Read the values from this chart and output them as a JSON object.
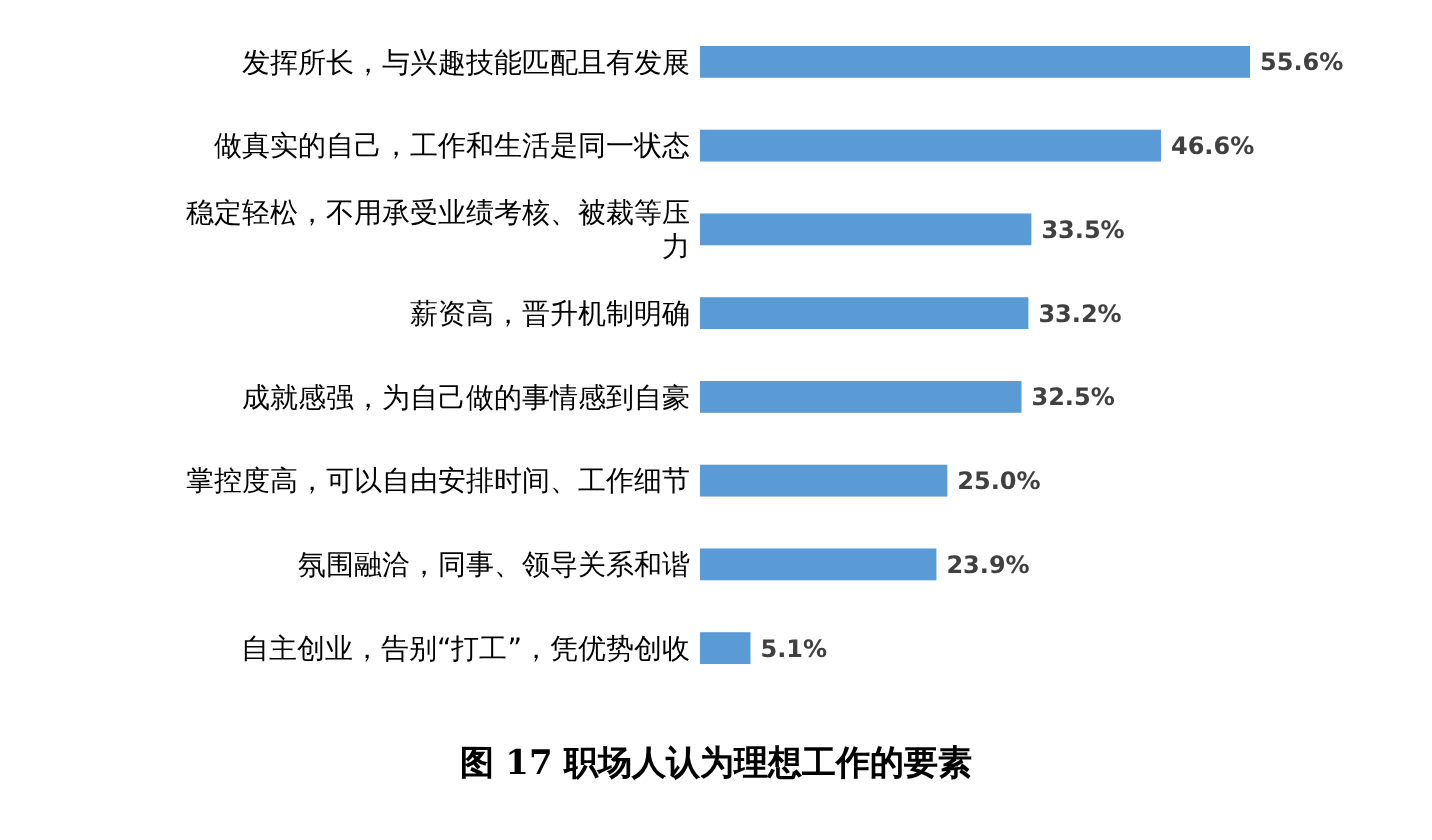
{
  "chart_data": {
    "type": "bar",
    "orientation": "horizontal",
    "title": "图 17  职场人认为理想工作的要素",
    "categories": [
      "发挥所长，与兴趣技能匹配且有发展",
      "做真实的自己，工作和生活是同一状态",
      "稳定轻松，不用承受业绩考核、被裁等压力",
      "薪资高，晋升机制明确",
      "成就感强，为自己做的事情感到自豪",
      "掌控度高，可以自由安排时间、工作细节",
      "氛围融洽，同事、领导关系和谐",
      "自主创业，告别“打工”，凭优势创收"
    ],
    "values": [
      55.6,
      46.6,
      33.5,
      33.2,
      32.5,
      25.0,
      23.9,
      5.1
    ],
    "value_labels": [
      "55.6%",
      "46.6%",
      "33.5%",
      "33.2%",
      "32.5%",
      "25.0%",
      "23.9%",
      "5.1%"
    ],
    "color": "#5b9bd5"
  }
}
